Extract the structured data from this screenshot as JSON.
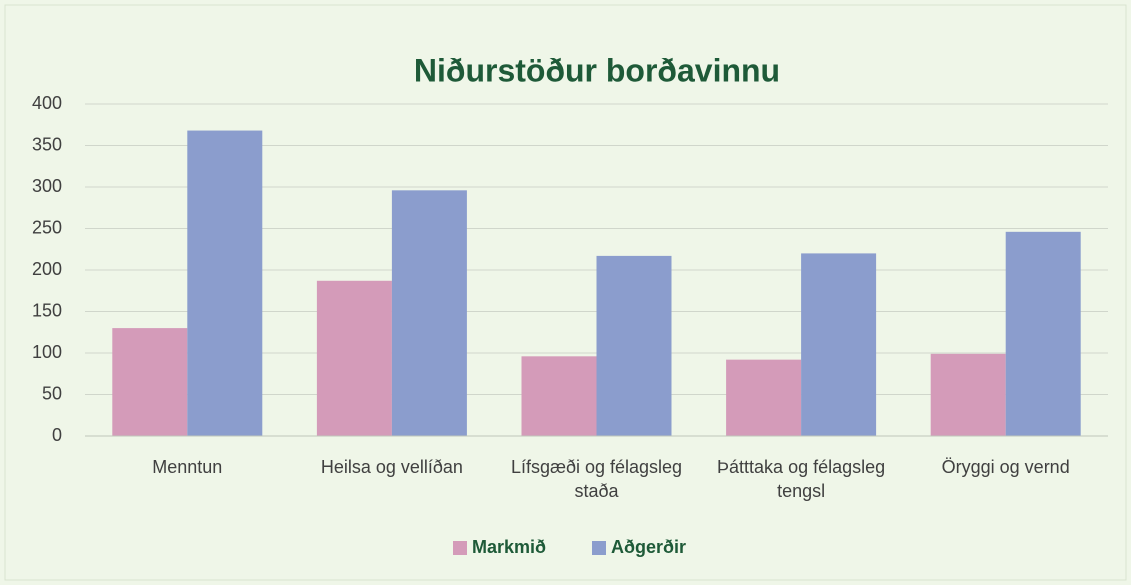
{
  "chart_data": {
    "type": "bar",
    "title": "Niðurstöður borðavinnu",
    "categories": [
      "Menntun",
      "Heilsa og vellíðan",
      "Lífsgæði og félagsleg staða",
      "Þátttaka og félagsleg tengsl",
      "Öryggi og vernd"
    ],
    "series": [
      {
        "name": "Markmið",
        "color": "#d49bb9",
        "values": [
          130,
          187,
          96,
          92,
          99
        ]
      },
      {
        "name": "Aðgerðir",
        "color": "#8b9dcd",
        "values": [
          368,
          296,
          217,
          220,
          246
        ]
      }
    ],
    "ylim": [
      0,
      400
    ],
    "yticks": [
      0,
      50,
      100,
      150,
      200,
      250,
      300,
      350,
      400
    ],
    "grid": true,
    "legend": "bottom"
  }
}
